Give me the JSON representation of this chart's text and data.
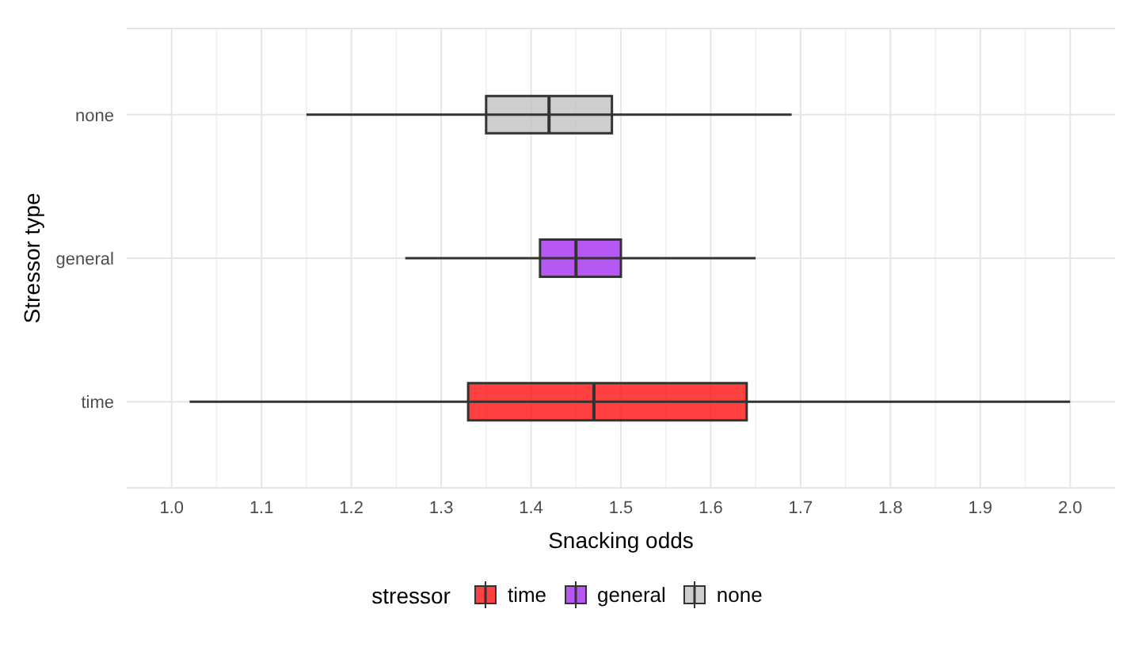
{
  "chart_data": {
    "type": "box",
    "orientation": "horizontal",
    "xlabel": "Snacking odds",
    "ylabel": "Stressor type",
    "legend_title": "stressor",
    "legend": "bottom",
    "grid": true,
    "categories": [
      "none",
      "general",
      "time"
    ],
    "xlim": [
      0.95,
      2.05
    ],
    "xticks": [
      {
        "value": 1,
        "label": "1.0"
      },
      {
        "value": 1.1,
        "label": "1.1"
      },
      {
        "value": 1.2,
        "label": "1.2"
      },
      {
        "value": 1.3,
        "label": "1.3"
      },
      {
        "value": 1.4,
        "label": "1.4"
      },
      {
        "value": 1.5,
        "label": "1.5"
      },
      {
        "value": 1.6,
        "label": "1.6"
      },
      {
        "value": 1.7,
        "label": "1.7"
      },
      {
        "value": 1.8,
        "label": "1.8"
      },
      {
        "value": 1.9,
        "label": "1.9"
      },
      {
        "value": 2,
        "label": "2.0"
      }
    ],
    "series": [
      {
        "name": "time",
        "color": "#ff0000",
        "boxes": [
          null,
          null,
          {
            "low": 1.02,
            "q1": 1.33,
            "median": 1.47,
            "q3": 1.64,
            "high": 2.0
          }
        ]
      },
      {
        "name": "general",
        "color": "#a020f0",
        "boxes": [
          null,
          {
            "low": 1.26,
            "q1": 1.41,
            "median": 1.45,
            "q3": 1.5,
            "high": 1.65
          },
          null
        ]
      },
      {
        "name": "none",
        "color": "#bebebe",
        "boxes": [
          {
            "low": 1.15,
            "q1": 1.35,
            "median": 1.42,
            "q3": 1.49,
            "high": 1.69
          },
          null,
          null
        ]
      }
    ]
  }
}
